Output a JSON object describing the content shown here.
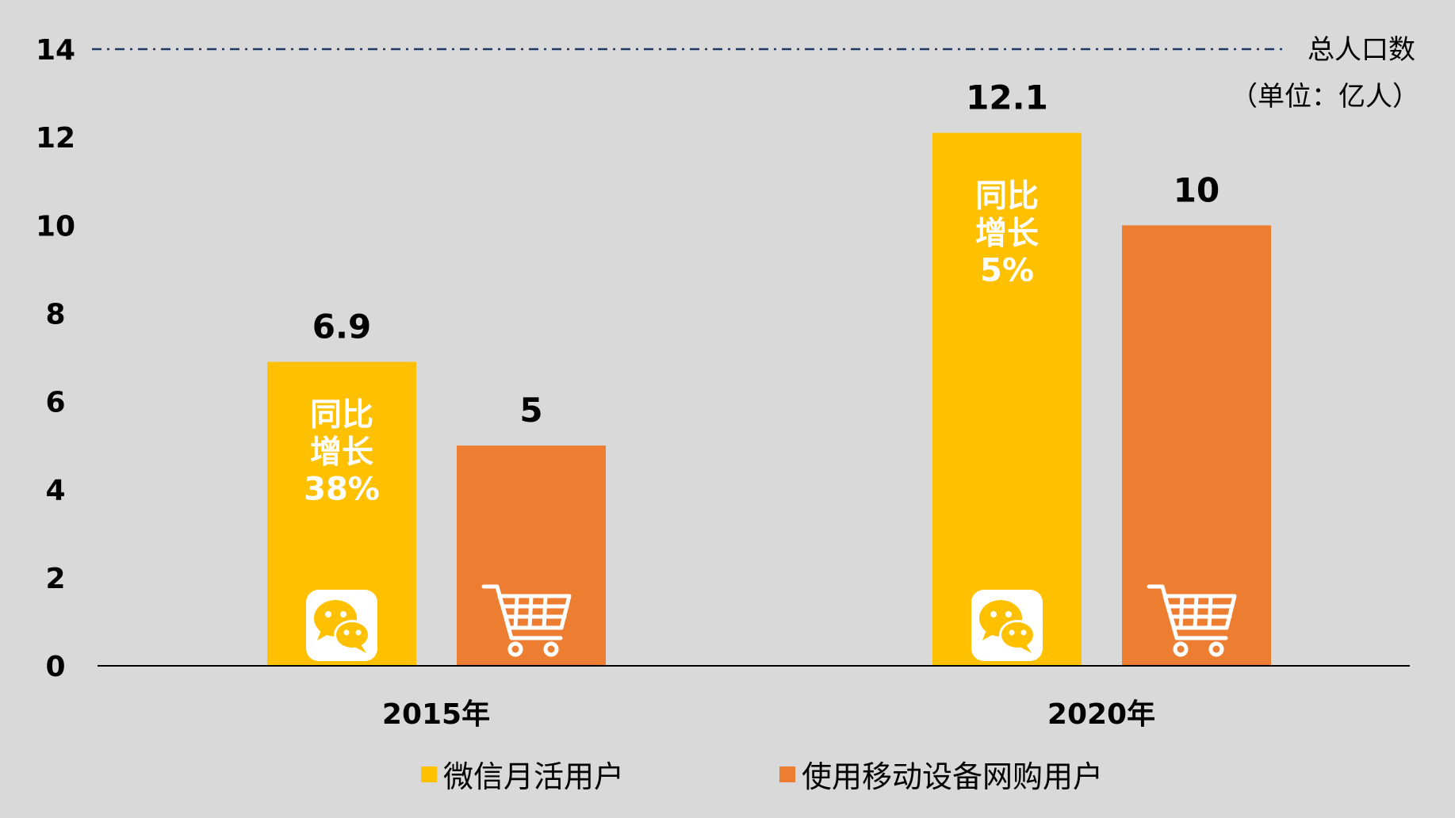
{
  "chart_data": {
    "type": "bar",
    "categories": [
      "2015年",
      "2020年"
    ],
    "series": [
      {
        "name": "微信月活用户",
        "values": [
          6.9,
          12.1
        ],
        "color": "#ffc000"
      },
      {
        "name": "使用移动设备网购用户",
        "values": [
          5,
          10
        ],
        "color": "#ed7d31"
      }
    ],
    "ylim": [
      0,
      14
    ],
    "yticks": [
      0,
      2,
      4,
      6,
      8,
      10,
      12,
      14
    ],
    "data_labels": [
      [
        "6.9",
        "12.1"
      ],
      [
        "5",
        "10"
      ]
    ],
    "reference_line": {
      "value": 14,
      "label": "总人口数",
      "color": "#1f3864",
      "style": "dash-dot"
    },
    "unit_note": "（单位：亿人）",
    "annotations": [
      {
        "lines": [
          "同比",
          "增长",
          "38%"
        ],
        "series": 0,
        "category": 0
      },
      {
        "lines": [
          "同比",
          "增长",
          "5%"
        ],
        "series": 0,
        "category": 1
      }
    ],
    "bar_icons": [
      "wechat-icon",
      "shopping-cart-icon"
    ],
    "legend_position": "bottom",
    "grid": false
  }
}
